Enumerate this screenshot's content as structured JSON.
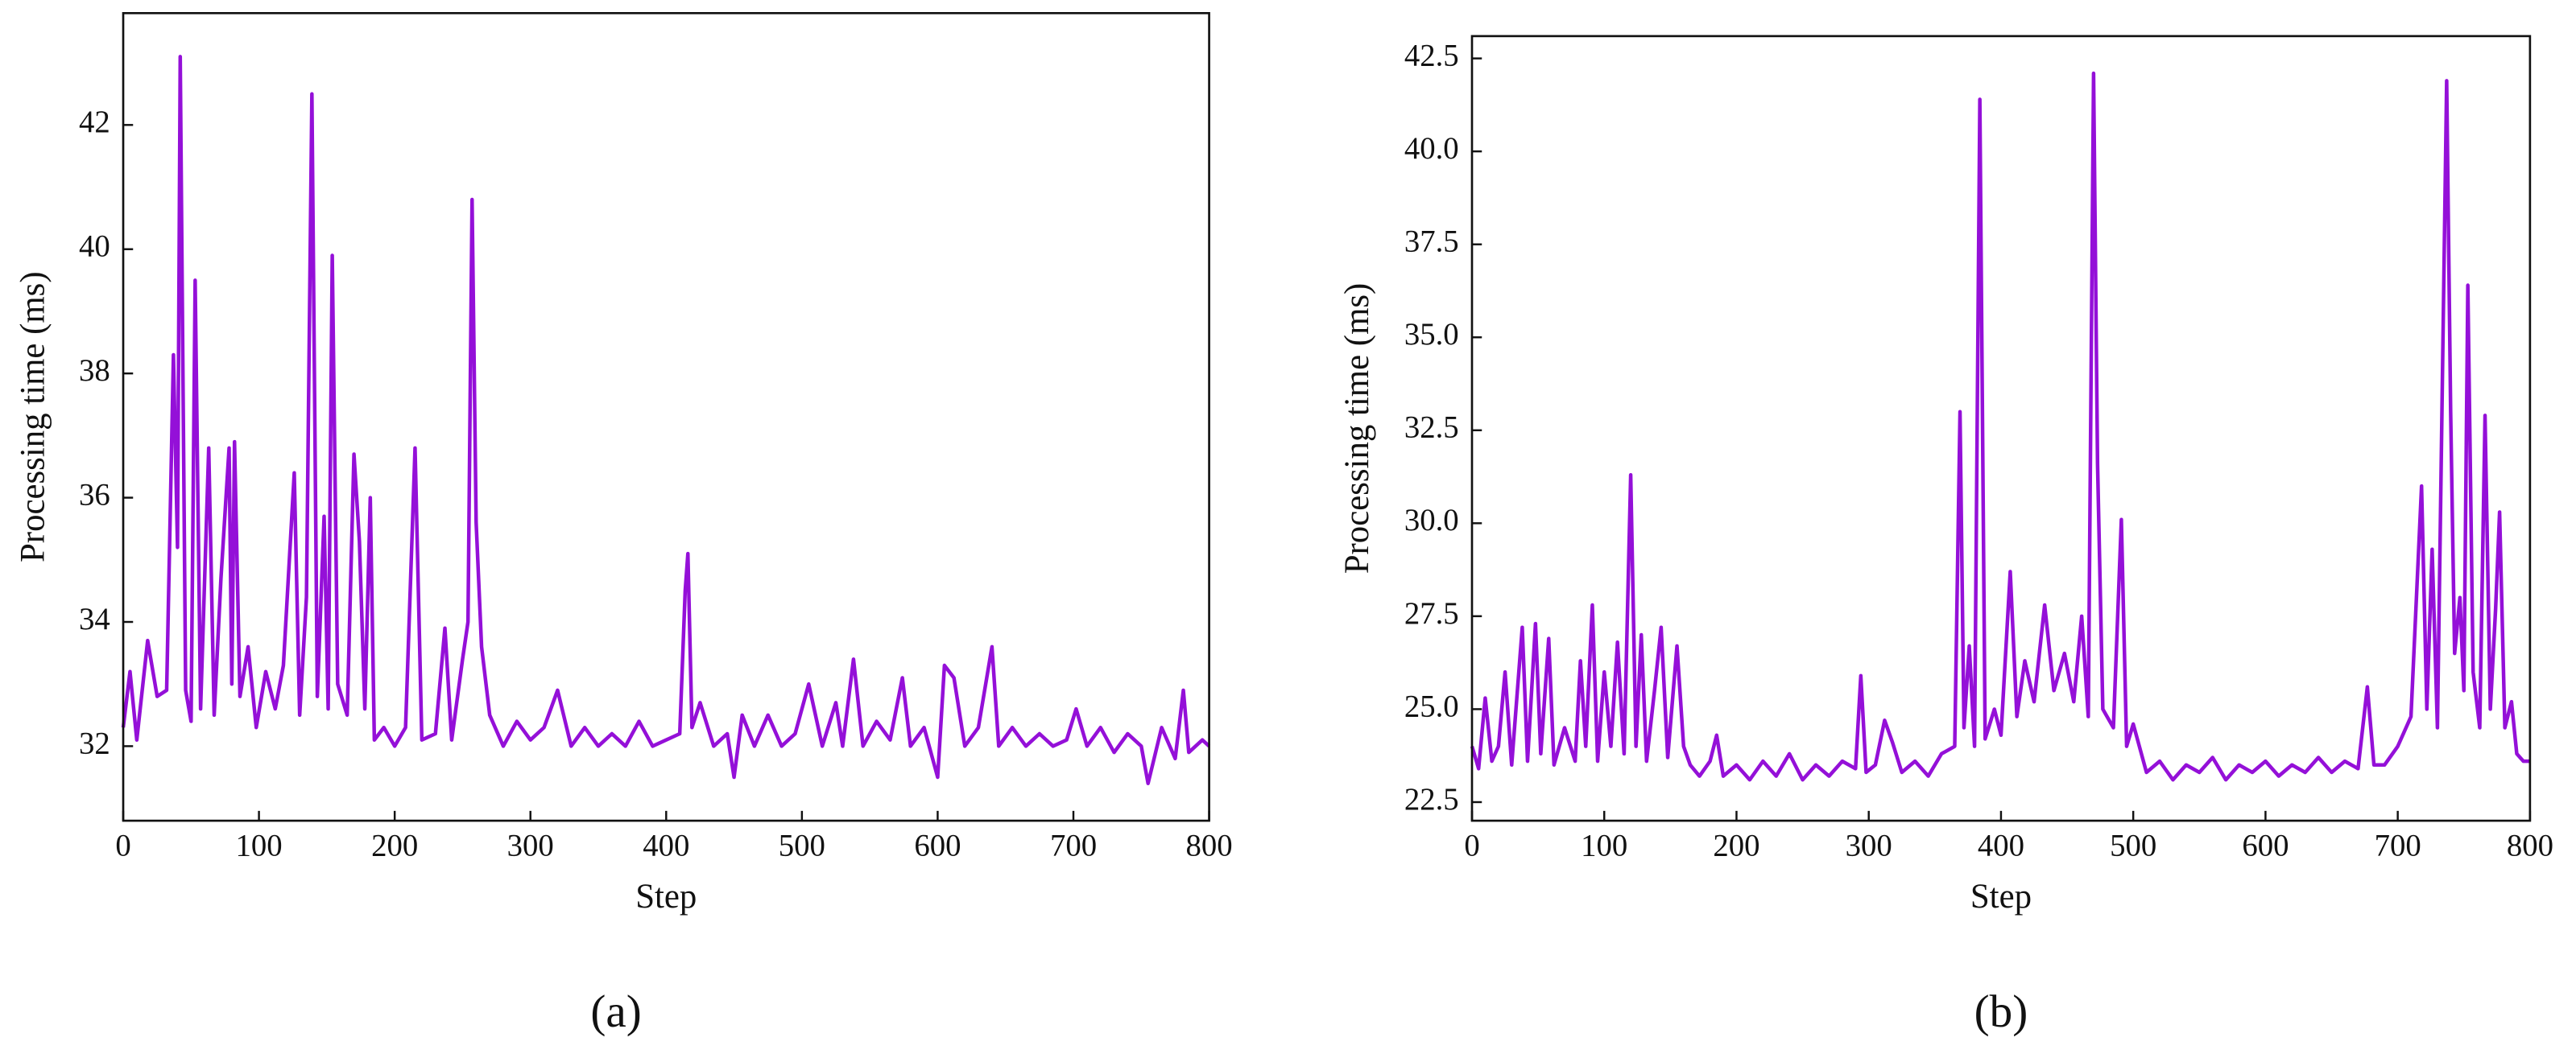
{
  "chart_data": [
    {
      "type": "line",
      "caption": "(a)",
      "xlabel": "Step",
      "ylabel": "Processing time (ms)",
      "xlim": [
        0,
        800
      ],
      "xticks": [
        0,
        100,
        200,
        300,
        400,
        500,
        600,
        700,
        800
      ],
      "ylim": [
        30.8,
        43.8
      ],
      "yticks": [
        32,
        34,
        36,
        38,
        40,
        42
      ],
      "series": [
        {
          "color": "#9410d8",
          "x": [
            0,
            5,
            10,
            18,
            25,
            32,
            37,
            40,
            42,
            46,
            50,
            53,
            57,
            63,
            67,
            72,
            78,
            80,
            82,
            86,
            92,
            98,
            105,
            112,
            118,
            126,
            130,
            135,
            139,
            143,
            148,
            151,
            154,
            158,
            165,
            170,
            174,
            178,
            182,
            185,
            192,
            200,
            208,
            215,
            220,
            230,
            237,
            242,
            250,
            254,
            257,
            260,
            264,
            270,
            280,
            290,
            300,
            310,
            320,
            330,
            340,
            350,
            360,
            370,
            380,
            390,
            400,
            410,
            414,
            416,
            419,
            425,
            435,
            445,
            450,
            456,
            465,
            475,
            485,
            495,
            505,
            515,
            525,
            530,
            538,
            545,
            555,
            565,
            574,
            580,
            590,
            600,
            605,
            612,
            620,
            630,
            640,
            645,
            655,
            665,
            675,
            685,
            695,
            702,
            710,
            720,
            730,
            740,
            750,
            755,
            765,
            775,
            781,
            785,
            795,
            800
          ],
          "values": [
            32.3,
            33.2,
            32.1,
            33.7,
            32.8,
            32.9,
            38.3,
            35.2,
            43.1,
            32.9,
            32.4,
            39.5,
            32.6,
            36.8,
            32.5,
            34.7,
            36.8,
            33.0,
            36.9,
            32.8,
            33.6,
            32.3,
            33.2,
            32.6,
            33.3,
            36.4,
            32.5,
            34.4,
            42.5,
            32.8,
            35.7,
            32.6,
            39.9,
            33.0,
            32.5,
            36.7,
            35.3,
            32.6,
            36.0,
            32.1,
            32.3,
            32.0,
            32.3,
            36.8,
            32.1,
            32.2,
            33.9,
            32.1,
            33.4,
            34.0,
            40.8,
            35.6,
            33.6,
            32.5,
            32.0,
            32.4,
            32.1,
            32.3,
            32.9,
            32.0,
            32.3,
            32.0,
            32.2,
            32.0,
            32.4,
            32.0,
            32.1,
            32.2,
            34.5,
            35.1,
            32.3,
            32.7,
            32.0,
            32.2,
            31.5,
            32.5,
            32.0,
            32.5,
            32.0,
            32.2,
            33.0,
            32.0,
            32.7,
            32.0,
            33.4,
            32.0,
            32.4,
            32.1,
            33.1,
            32.0,
            32.3,
            31.5,
            33.3,
            33.1,
            32.0,
            32.3,
            33.6,
            32.0,
            32.3,
            32.0,
            32.2,
            32.0,
            32.1,
            32.6,
            32.0,
            32.3,
            31.9,
            32.2,
            32.0,
            31.4,
            32.3,
            31.8,
            32.9,
            31.9,
            32.1,
            32.0
          ]
        }
      ]
    },
    {
      "type": "line",
      "caption": "(b)",
      "xlabel": "Step",
      "ylabel": "Processing time (ms)",
      "xlim": [
        0,
        800
      ],
      "xticks": [
        0,
        100,
        200,
        300,
        400,
        500,
        600,
        700,
        800
      ],
      "ylim": [
        22.0,
        43.1
      ],
      "yticks": [
        22.5,
        {
          "value": 25,
          "label": "25.0"
        },
        27.5,
        {
          "value": 30,
          "label": "30.0"
        },
        32.5,
        {
          "value": 35,
          "label": "35.0"
        },
        37.5,
        {
          "value": 40,
          "label": "40.0"
        },
        42.5
      ],
      "series": [
        {
          "color": "#9410d8",
          "x": [
            0,
            5,
            10,
            15,
            20,
            25,
            30,
            38,
            42,
            48,
            52,
            58,
            62,
            70,
            78,
            82,
            86,
            91,
            95,
            100,
            105,
            110,
            115,
            120,
            124,
            128,
            132,
            138,
            143,
            148,
            155,
            160,
            165,
            172,
            180,
            185,
            190,
            200,
            210,
            220,
            230,
            240,
            250,
            260,
            270,
            280,
            290,
            294,
            298,
            305,
            312,
            318,
            325,
            335,
            345,
            355,
            365,
            369,
            372,
            376,
            380,
            384,
            388,
            395,
            400,
            407,
            412,
            418,
            425,
            433,
            440,
            448,
            455,
            461,
            466,
            470,
            473,
            477,
            485,
            491,
            495,
            500,
            510,
            520,
            530,
            540,
            550,
            560,
            570,
            580,
            590,
            600,
            610,
            620,
            630,
            640,
            650,
            660,
            670,
            677,
            682,
            690,
            700,
            710,
            718,
            722,
            726,
            730,
            737,
            740,
            743,
            747,
            750,
            753,
            757,
            762,
            766,
            770,
            774,
            777,
            781,
            786,
            790,
            795,
            800
          ],
          "values": [
            24.0,
            23.4,
            25.3,
            23.6,
            24.0,
            26.0,
            23.5,
            27.2,
            23.6,
            27.3,
            23.8,
            26.9,
            23.5,
            24.5,
            23.6,
            26.3,
            24.0,
            27.8,
            23.6,
            26.0,
            24.0,
            26.8,
            23.8,
            31.3,
            24.0,
            27.0,
            23.6,
            25.5,
            27.2,
            23.7,
            26.7,
            24.0,
            23.5,
            23.2,
            23.6,
            24.3,
            23.2,
            23.5,
            23.1,
            23.6,
            23.2,
            23.8,
            23.1,
            23.5,
            23.2,
            23.6,
            23.4,
            25.9,
            23.3,
            23.5,
            24.7,
            24.1,
            23.3,
            23.6,
            23.2,
            23.8,
            24.0,
            33.0,
            24.5,
            26.7,
            24.0,
            41.4,
            24.2,
            25.0,
            24.3,
            28.7,
            24.8,
            26.3,
            25.2,
            27.8,
            25.5,
            26.5,
            25.2,
            27.5,
            24.8,
            42.1,
            31.6,
            25.0,
            24.5,
            30.1,
            24.0,
            24.6,
            23.3,
            23.6,
            23.1,
            23.5,
            23.3,
            23.7,
            23.1,
            23.5,
            23.3,
            23.6,
            23.2,
            23.5,
            23.3,
            23.7,
            23.3,
            23.6,
            23.4,
            25.6,
            23.5,
            23.5,
            24.0,
            24.8,
            31.0,
            25.0,
            29.3,
            24.5,
            41.9,
            33.0,
            26.5,
            28.0,
            25.5,
            36.4,
            26.0,
            24.5,
            32.9,
            25.0,
            27.7,
            30.3,
            24.5,
            25.2,
            23.8,
            23.6,
            23.6
          ]
        }
      ]
    }
  ]
}
